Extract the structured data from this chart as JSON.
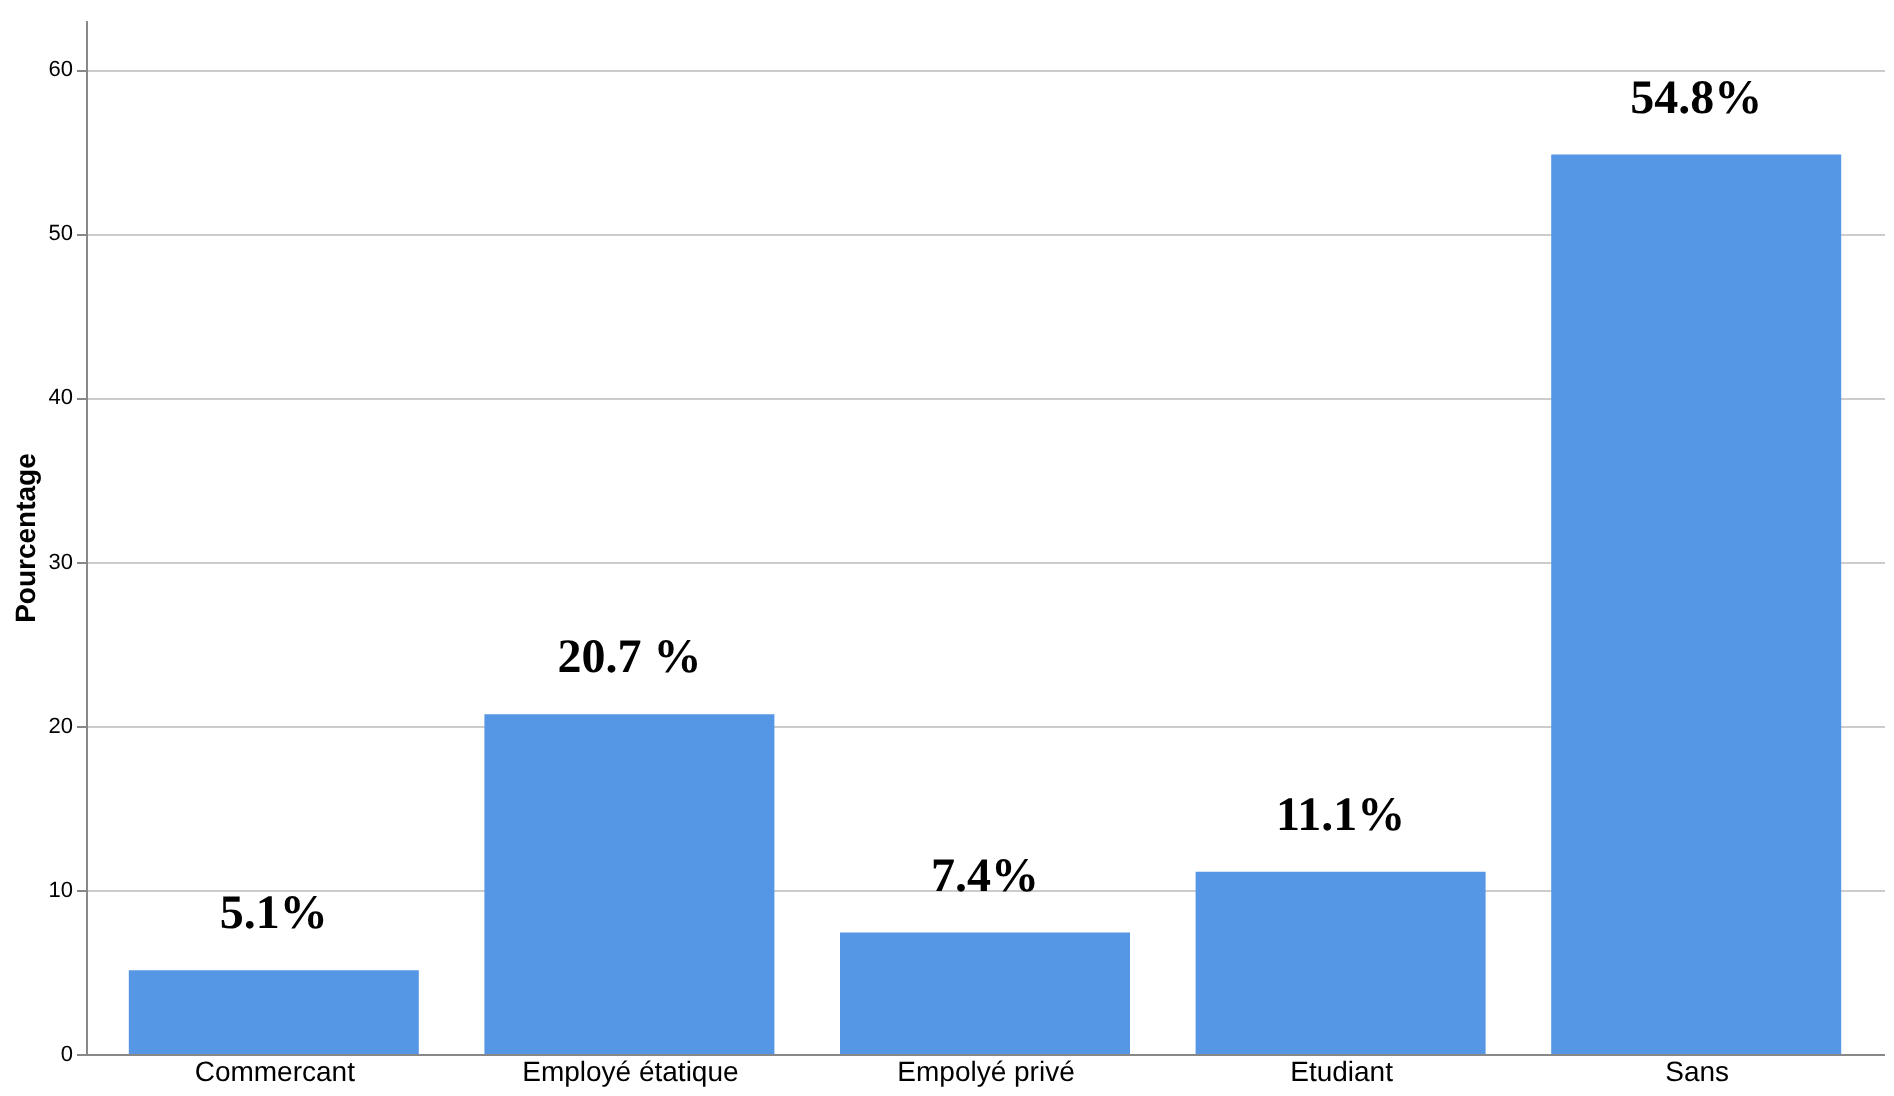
{
  "chart_data": {
    "type": "bar",
    "ylabel": "Pourcentage",
    "categories": [
      "Commercant",
      "Employé étatique",
      "Empolyé  privé",
      "Etudiant",
      "Sans"
    ],
    "values": [
      5.1,
      20.7,
      7.4,
      11.1,
      54.8
    ],
    "value_labels": [
      "5.1%",
      "20.7 %",
      "7.4%",
      "11.1%",
      "54.8%"
    ],
    "color": "#5596e5",
    "ylim": [
      0,
      63
    ],
    "yticks": [
      0,
      10,
      20,
      30,
      40,
      50,
      60
    ],
    "grid": "y"
  }
}
